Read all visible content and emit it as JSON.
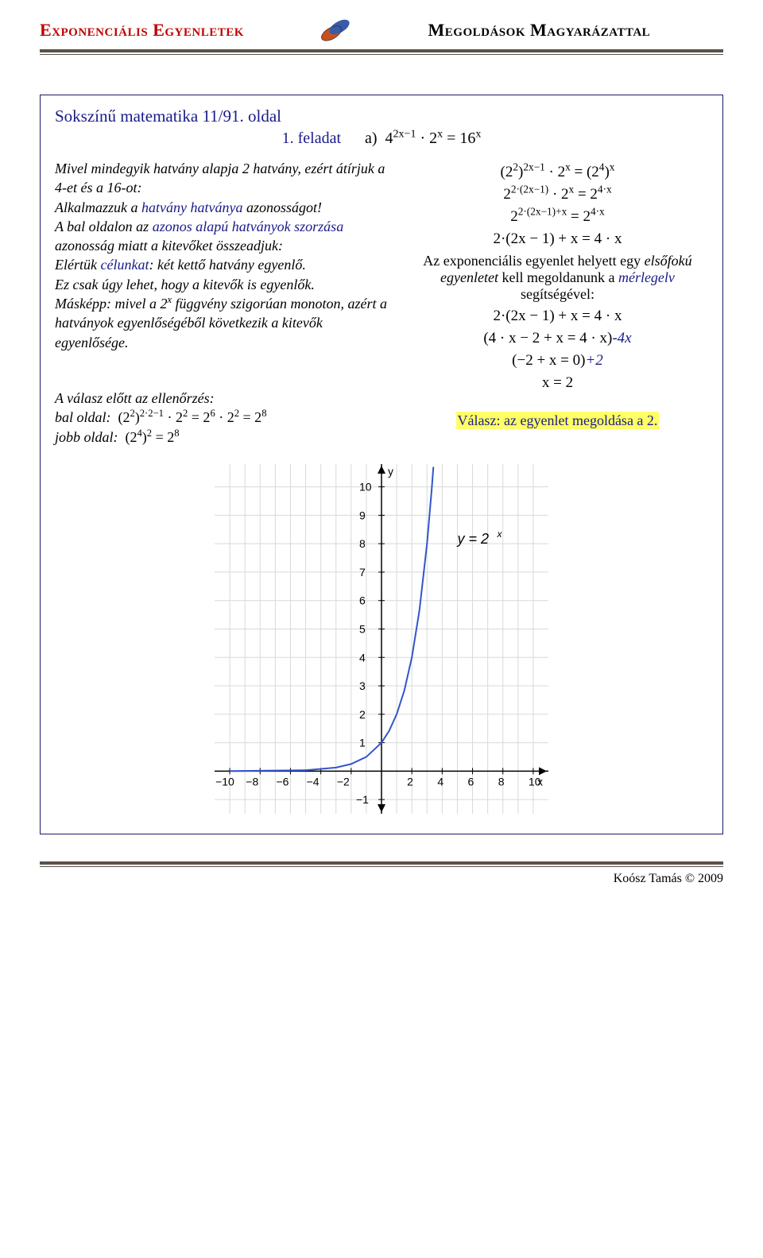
{
  "header": {
    "left": "Exponenciális Egyenletek",
    "right": "Megoldások Magyarázattal"
  },
  "title": "Sokszínű matematika 11/91. oldal",
  "feladat_label": "1. feladat",
  "feladat_eq": "a) 4",
  "explain": {
    "p1a": "Mivel mindegyik hatvány alapja 2 hatvány, ezért átírjuk a 4-et és a 16-ot:",
    "p2a": "Alkalmazzuk a ",
    "p2b": "hatvány hatványa",
    "p2c": " azonosságot!",
    "p3a": "A bal oldalon az ",
    "p3b": "azonos alapú hatványok szorzása",
    "p3c": " azonosság miatt a kitevőket összeadjuk:",
    "p4a": "Elértük ",
    "p4b": "célunkat",
    "p4c": ": két kettő hatvány egyenlő.",
    "p5": "Ez csak úgy lehet, hogy a kitevők is egyenlők.",
    "p6a": "Másképp: mivel a ",
    "p6b": " függvény szigorúan monoton, azért a hatványok egyenlőségéből következik a kitevők egyenlősége."
  },
  "right_text": {
    "l1": "Az exponenciális egyenlet helyett egy ",
    "l1b": "elsőfokú egyenletet",
    "l1c": " kell megoldanunk a ",
    "l1d": "mérlegelv",
    "l1e": " segítségével:"
  },
  "answer": "Válasz: az egyenlet megoldása a 2.",
  "check": {
    "title": "A válasz előtt az ellenőrzés:",
    "left_label": "bal oldal:",
    "right_label": "jobb oldal:"
  },
  "chart": {
    "type": "line",
    "curve_label": "y = 2ˣ",
    "xlim": [
      -11,
      11
    ],
    "ylim": [
      -1.5,
      10.8
    ],
    "xticks": [
      -10,
      -8,
      -6,
      -4,
      -2,
      2,
      4,
      6,
      8,
      10
    ],
    "yticks": [
      1,
      2,
      3,
      4,
      5,
      6,
      7,
      8,
      9,
      10
    ],
    "yticks_neg": [
      -1
    ],
    "grid_color": "#d9d9d9",
    "axis_color": "#000000",
    "curve_color": "#3355cc",
    "curve_width": 2,
    "background": "#ffffff",
    "tick_fontsize": 14,
    "label_fontsize": 18,
    "points": [
      [
        -10,
        0.001
      ],
      [
        -5,
        0.031
      ],
      [
        -3,
        0.125
      ],
      [
        -2,
        0.25
      ],
      [
        -1,
        0.5
      ],
      [
        0,
        1
      ],
      [
        0.5,
        1.414
      ],
      [
        1,
        2
      ],
      [
        1.5,
        2.828
      ],
      [
        2,
        4
      ],
      [
        2.5,
        5.657
      ],
      [
        3,
        8
      ],
      [
        3.3,
        9.85
      ],
      [
        3.42,
        10.7
      ]
    ]
  },
  "footer": "Koósz Tamás © 2009"
}
